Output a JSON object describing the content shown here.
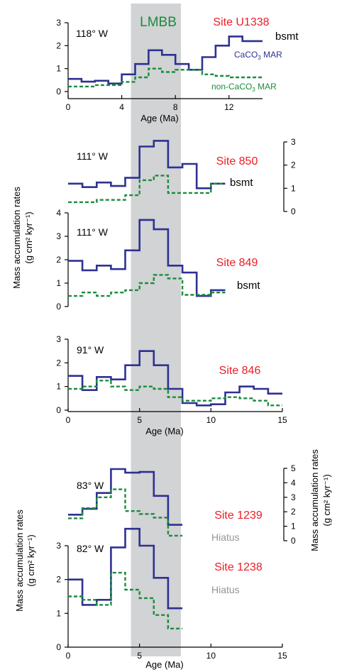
{
  "colors": {
    "caco3": "#2e3192",
    "noncaco3": "#1a8c3c",
    "site": "#ed1c24",
    "band": "#d1d3d4",
    "hiatus": "#939598",
    "lmbb": "#1a8c3c"
  },
  "band": {
    "label": "LMBB",
    "from": 4.4,
    "to": 7.9
  },
  "left_ylabel_top": [
    "Mass accumulation rates",
    "(g  cm² kyr⁻¹)"
  ],
  "left_ylabel_bottom": [
    "Mass accumulation rates",
    "(g  cm² kyr⁻¹)"
  ],
  "right_ylabel_bottom": [
    "Mass accumulation rates",
    "(g  cm² kyr⁻¹)"
  ],
  "chart_data": [
    {
      "type": "line",
      "site": "Site U1338",
      "longitude": "118° W",
      "xlim": [
        0,
        14.5
      ],
      "ylim": [
        0,
        3
      ],
      "yticks": [
        "0",
        "1",
        "2",
        "3"
      ],
      "xticks": [
        "0",
        "4",
        "8",
        "12"
      ],
      "xlabel": "Age (Ma)",
      "labels": {
        "bsmt": "bsmt",
        "caco3": "CaCO",
        "caco3_sub": "3",
        "caco3_tail": " MAR",
        "noncaco3": "non-CaCO",
        "noncaco3_sub": "3",
        "noncaco3_tail": " MAR"
      },
      "series": [
        {
          "name": "CaCO3 MAR",
          "x": [
            0,
            1,
            1,
            2,
            2,
            3,
            3,
            4,
            4,
            5,
            5,
            6,
            6,
            7,
            7,
            8,
            8,
            9,
            9,
            10,
            10,
            11,
            11,
            12,
            12,
            13,
            13,
            14.5
          ],
          "y": [
            0.55,
            0.55,
            0.43,
            0.43,
            0.47,
            0.47,
            0.35,
            0.35,
            0.75,
            0.75,
            1.2,
            1.2,
            1.8,
            1.8,
            1.6,
            1.6,
            1.2,
            1.2,
            0.95,
            0.95,
            1.5,
            1.5,
            2.0,
            2.0,
            2.4,
            2.4,
            2.2,
            2.2
          ]
        },
        {
          "name": "non-CaCO3 MAR",
          "x": [
            0,
            2,
            2,
            4,
            4,
            5,
            5,
            6,
            6,
            7,
            7,
            8,
            8,
            10,
            10,
            11,
            11,
            12,
            12,
            14.5
          ],
          "y": [
            0.22,
            0.22,
            0.28,
            0.28,
            0.42,
            0.42,
            0.62,
            0.62,
            1.0,
            1.0,
            0.85,
            0.85,
            0.95,
            0.95,
            0.75,
            0.75,
            0.68,
            0.68,
            0.62,
            0.62
          ]
        }
      ]
    },
    {
      "type": "line",
      "site": "Site 850",
      "longitude": "111° W",
      "xlim": [
        0,
        15
      ],
      "ylim": [
        0,
        3
      ],
      "right_axis": true,
      "yticks": [
        "0",
        "1",
        "2",
        "3"
      ],
      "labels": {
        "bsmt": "bsmt"
      },
      "series": [
        {
          "name": "CaCO3 MAR",
          "x": [
            0,
            1,
            1,
            2,
            2,
            3,
            3,
            4,
            4,
            5,
            5,
            6,
            6,
            7,
            7,
            8,
            8,
            9,
            9,
            10,
            10,
            11
          ],
          "y": [
            1.2,
            1.2,
            1.05,
            1.05,
            1.25,
            1.25,
            1.1,
            1.1,
            1.45,
            1.45,
            2.8,
            2.8,
            3.05,
            3.05,
            1.9,
            1.9,
            2.05,
            2.05,
            1.0,
            1.0,
            1.2,
            1.2
          ]
        },
        {
          "name": "non-CaCO3 MAR",
          "x": [
            0,
            2,
            2,
            4,
            4,
            5,
            5,
            6,
            6,
            7,
            7,
            10,
            10,
            11
          ],
          "y": [
            0.4,
            0.4,
            0.5,
            0.5,
            0.7,
            0.7,
            1.35,
            1.35,
            1.55,
            1.55,
            0.8,
            0.8,
            1.2,
            1.2
          ]
        }
      ]
    },
    {
      "type": "line",
      "site": "Site 849",
      "longitude": "111° W",
      "xlim": [
        0,
        15
      ],
      "ylim": [
        0,
        4
      ],
      "yticks": [
        "0",
        "1",
        "2",
        "3",
        "4"
      ],
      "labels": {
        "bsmt": "bsmt"
      },
      "series": [
        {
          "name": "CaCO3 MAR",
          "x": [
            0,
            1,
            1,
            2,
            2,
            3,
            3,
            4,
            4,
            5,
            5,
            6,
            6,
            7,
            7,
            8,
            8,
            9,
            9,
            10,
            10,
            11
          ],
          "y": [
            1.95,
            1.95,
            1.55,
            1.55,
            1.75,
            1.75,
            1.6,
            1.6,
            2.4,
            2.4,
            3.7,
            3.7,
            3.3,
            3.3,
            1.75,
            1.75,
            1.45,
            1.45,
            0.45,
            0.45,
            0.7,
            0.7
          ]
        },
        {
          "name": "non-CaCO3 MAR",
          "x": [
            0,
            1,
            1,
            2,
            2,
            3,
            3,
            4,
            4,
            5,
            5,
            6,
            6,
            7,
            7,
            8,
            8,
            10,
            10,
            11
          ],
          "y": [
            0.45,
            0.45,
            0.6,
            0.6,
            0.45,
            0.45,
            0.6,
            0.6,
            0.7,
            0.7,
            1.0,
            1.0,
            1.35,
            1.35,
            1.2,
            1.2,
            0.5,
            0.5,
            0.6,
            0.6
          ]
        }
      ]
    },
    {
      "type": "line",
      "site": "Site 846",
      "longitude": "91° W",
      "xlim": [
        0,
        15
      ],
      "ylim": [
        0,
        3
      ],
      "yticks": [
        "0",
        "1",
        "2",
        "3"
      ],
      "xticks": [
        "0",
        "5",
        "10",
        "15"
      ],
      "xlabel": "Age (Ma)",
      "series": [
        {
          "name": "CaCO3 MAR",
          "x": [
            0,
            1,
            1,
            2,
            2,
            3,
            3,
            4,
            4,
            5,
            5,
            6,
            6,
            7,
            7,
            8,
            8,
            9,
            9,
            10,
            10,
            11,
            11,
            12,
            12,
            13,
            13,
            14,
            14,
            15
          ],
          "y": [
            1.45,
            1.45,
            0.85,
            0.85,
            1.4,
            1.4,
            1.3,
            1.3,
            1.9,
            1.9,
            2.5,
            2.5,
            1.9,
            1.9,
            0.9,
            0.9,
            0.3,
            0.3,
            0.2,
            0.2,
            0.25,
            0.25,
            0.75,
            0.75,
            1.0,
            1.0,
            0.9,
            0.9,
            0.7,
            0.7
          ]
        },
        {
          "name": "non-CaCO3 MAR",
          "x": [
            0,
            1,
            1,
            2,
            2,
            3,
            3,
            4,
            4,
            5,
            5,
            6,
            6,
            7,
            7,
            8,
            8,
            10,
            10,
            11,
            11,
            12,
            12,
            13,
            13,
            14,
            14,
            15
          ],
          "y": [
            0.9,
            0.9,
            1.0,
            1.0,
            1.25,
            1.25,
            1.0,
            1.0,
            0.85,
            0.85,
            1.0,
            1.0,
            0.9,
            0.9,
            0.55,
            0.55,
            0.4,
            0.4,
            0.5,
            0.5,
            0.55,
            0.55,
            0.5,
            0.5,
            0.4,
            0.4,
            0.2,
            0.2
          ]
        }
      ]
    },
    {
      "type": "line",
      "site": "Site 1239",
      "longitude": "83° W",
      "xlim": [
        0,
        15
      ],
      "ylim": [
        0,
        5
      ],
      "right_axis": true,
      "yticks": [
        "0",
        "1",
        "2",
        "3",
        "4",
        "5"
      ],
      "labels": {
        "hiatus": "Hiatus"
      },
      "series": [
        {
          "name": "CaCO3 MAR",
          "x": [
            0,
            1,
            1,
            2,
            2,
            3,
            3,
            4,
            4,
            5,
            5,
            6,
            6,
            7,
            7,
            8
          ],
          "y": [
            1.8,
            1.8,
            2.2,
            2.2,
            3.3,
            3.3,
            4.95,
            4.95,
            4.7,
            4.7,
            4.75,
            4.75,
            3.1,
            3.1,
            1.1,
            1.1
          ]
        },
        {
          "name": "non-CaCO3 MAR",
          "x": [
            0,
            1,
            1,
            2,
            2,
            3,
            3,
            4,
            4,
            5,
            5,
            6,
            6,
            7,
            7,
            8
          ],
          "y": [
            1.55,
            1.55,
            2.25,
            2.25,
            3.0,
            3.0,
            3.55,
            3.55,
            2.05,
            2.05,
            1.85,
            1.85,
            1.6,
            1.6,
            0.35,
            0.35
          ]
        }
      ]
    },
    {
      "type": "line",
      "site": "Site 1238",
      "longitude": "82° W",
      "xlim": [
        0,
        15
      ],
      "ylim": [
        0,
        3
      ],
      "yticks": [
        "0",
        "1",
        "2",
        "3"
      ],
      "xticks": [
        "0",
        "5",
        "10",
        "15"
      ],
      "xlabel": "Age (Ma)",
      "labels": {
        "hiatus": "Hiatus"
      },
      "series": [
        {
          "name": "CaCO3 MAR",
          "x": [
            0,
            1,
            1,
            2,
            2,
            3,
            3,
            4,
            4,
            5,
            5,
            6,
            6,
            7,
            7,
            8
          ],
          "y": [
            2.0,
            2.0,
            1.25,
            1.25,
            1.4,
            1.4,
            2.95,
            2.95,
            3.5,
            3.5,
            3.0,
            3.0,
            2.05,
            2.05,
            1.15,
            1.15
          ]
        },
        {
          "name": "non-CaCO3 MAR",
          "x": [
            0,
            1,
            1,
            2,
            2,
            3,
            3,
            4,
            4,
            5,
            5,
            6,
            6,
            7,
            7,
            8
          ],
          "y": [
            1.5,
            1.5,
            1.4,
            1.4,
            1.25,
            1.25,
            2.2,
            2.2,
            1.7,
            1.7,
            1.45,
            1.45,
            0.95,
            0.95,
            0.55,
            0.55
          ]
        }
      ]
    }
  ]
}
